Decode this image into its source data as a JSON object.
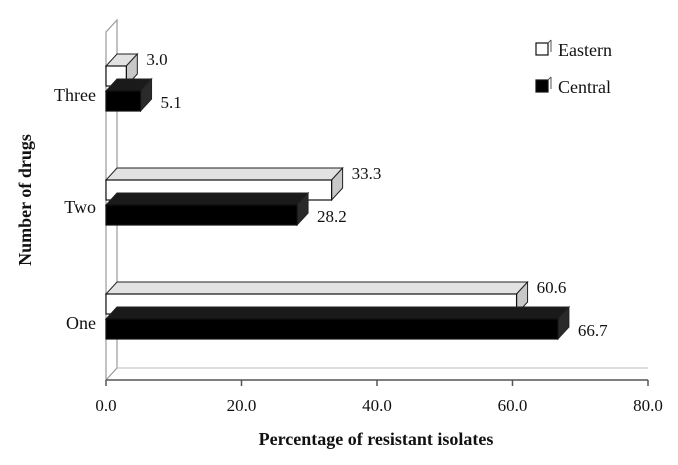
{
  "chart_data": {
    "type": "bar",
    "orientation": "horizontal",
    "style": "3d",
    "title": "",
    "xlabel": "Percentage of resistant isolates",
    "ylabel": "Number of drugs",
    "xlim": [
      0,
      80
    ],
    "xticks": [
      "0.0",
      "20.0",
      "40.0",
      "60.0",
      "80.0"
    ],
    "xtick_values": [
      0,
      20,
      40,
      60,
      80
    ],
    "categories": [
      "One",
      "Two",
      "Three"
    ],
    "series": [
      {
        "name": "Eastern",
        "values": [
          60.6,
          33.3,
          3.0
        ],
        "labels": [
          "60.6",
          "33.3",
          "3.0"
        ],
        "color": "#ffffff"
      },
      {
        "name": "Central",
        "values": [
          66.7,
          28.2,
          5.1
        ],
        "labels": [
          "66.7",
          "28.2",
          "5.1"
        ],
        "color": "#000000"
      }
    ],
    "legend": {
      "position": "top-right",
      "entries": [
        "Eastern",
        "Central"
      ]
    },
    "grid": false
  },
  "colors": {
    "side_face": "#c8c8c8",
    "top_face": "#e2e2e2",
    "wall": "#ffffff",
    "axis": "#555555"
  }
}
